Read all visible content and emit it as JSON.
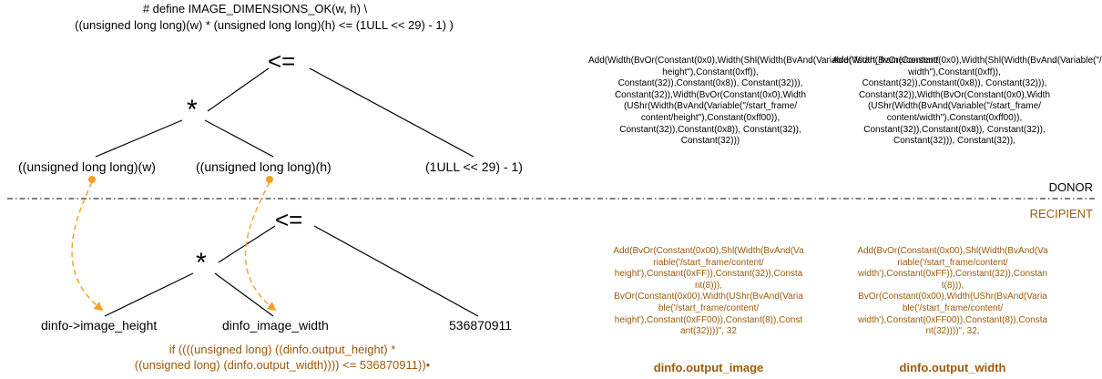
{
  "donor": {
    "macro_line1": "# define IMAGE_DIMENSIONS_OK(w, h)  \\",
    "macro_line2": "((unsigned long long)(w) * (unsigned long long)(h) <= (1ULL << 29) - 1) )",
    "op_root": "<=",
    "op_mul": "*",
    "leaf_w": "((unsigned long long)(w)",
    "leaf_h": "((unsigned long long)(h)",
    "leaf_const": "(1ULL << 29) - 1)",
    "expr_height": "Add(Width(BvOr(Constant(0x0),Width(Shl(Width(BvAnd(Variable(\"/start_frame/content/\nheight\"),Constant(0xff)),\nConstant(32)),Constant(0x8)), Constant(32))),\nConstant(32)),Width(BvOr(Constant(0x0),Width\n(UShr(Width(BvAnd(Variable(\"/start_frame/\ncontent/height\"),Constant(0xff00)),\nConstant(32)),Constant(0x8)), Constant(32)),\nConstant(32)))",
    "expr_width": "Add(Width(BvOr(Constant(0x0),Width(Shl(Width(BvAnd(Variable(\"/start_frame/content/\nwidth\"),Constant(0xff)),\nConstant(32)),Constant(0x8)), Constant(32))),\nConstant(32)),Width(BvOr(Constant(0x0),Width\n(UShr(Width(BvAnd(Variable(\"/start_frame/\ncontent/width\"),Constant(0xff00)),\nConstant(32)),Constant(0x8)), Constant(32)),\nConstant(32))), Constant(32)),",
    "label": "DONOR"
  },
  "recipient": {
    "label": "RECIPIENT",
    "op_root": "<=",
    "op_mul": "*",
    "leaf_height": "dinfo->image_height",
    "leaf_width": "dinfo_image_width",
    "leaf_const": "536870911",
    "code_line1": "if ((((unsigned long) ((dinfo.output_height) *",
    "code_line2": "((unsigned long) (dinfo.output_width)))) <= 536870911))•",
    "expr_image": "Add(BvOr(Constant(0x00),Shl(Width(BvAnd(Va\nriable('/start_frame/content/\nheight'),Constant(0xFF)),Constant(32)),Consta\nnt(8))),\nBvOr(Constant(0x00),Width(UShr(BvAnd(Varia\nble('/start_frame/content/\nheight'),Constant(0xFF00)),Constant(8)),Const\nant(32))))\", 32",
    "expr_width": "Add(BvOr(Constant(0x00),Shl(Width(BvAnd(Va\nriable('/start_frame/content/\nwidth'),Constant(0xFF)),Constant(32)),Constan\nt(8))),\nBvOr(Constant(0x00),Width(UShr(BvAnd(Varia\nble('/start_frame/content/\nwidth'),Constant(0xFF00)),Constant(8)),Consta\nnt(32))))\", 32,",
    "caption_image": "dinfo.output_image",
    "caption_width": "dinfo.output_width"
  },
  "colors": {
    "line": "#000000",
    "arrow": "#f5a024",
    "recipient_text": "#9c5a0c"
  }
}
